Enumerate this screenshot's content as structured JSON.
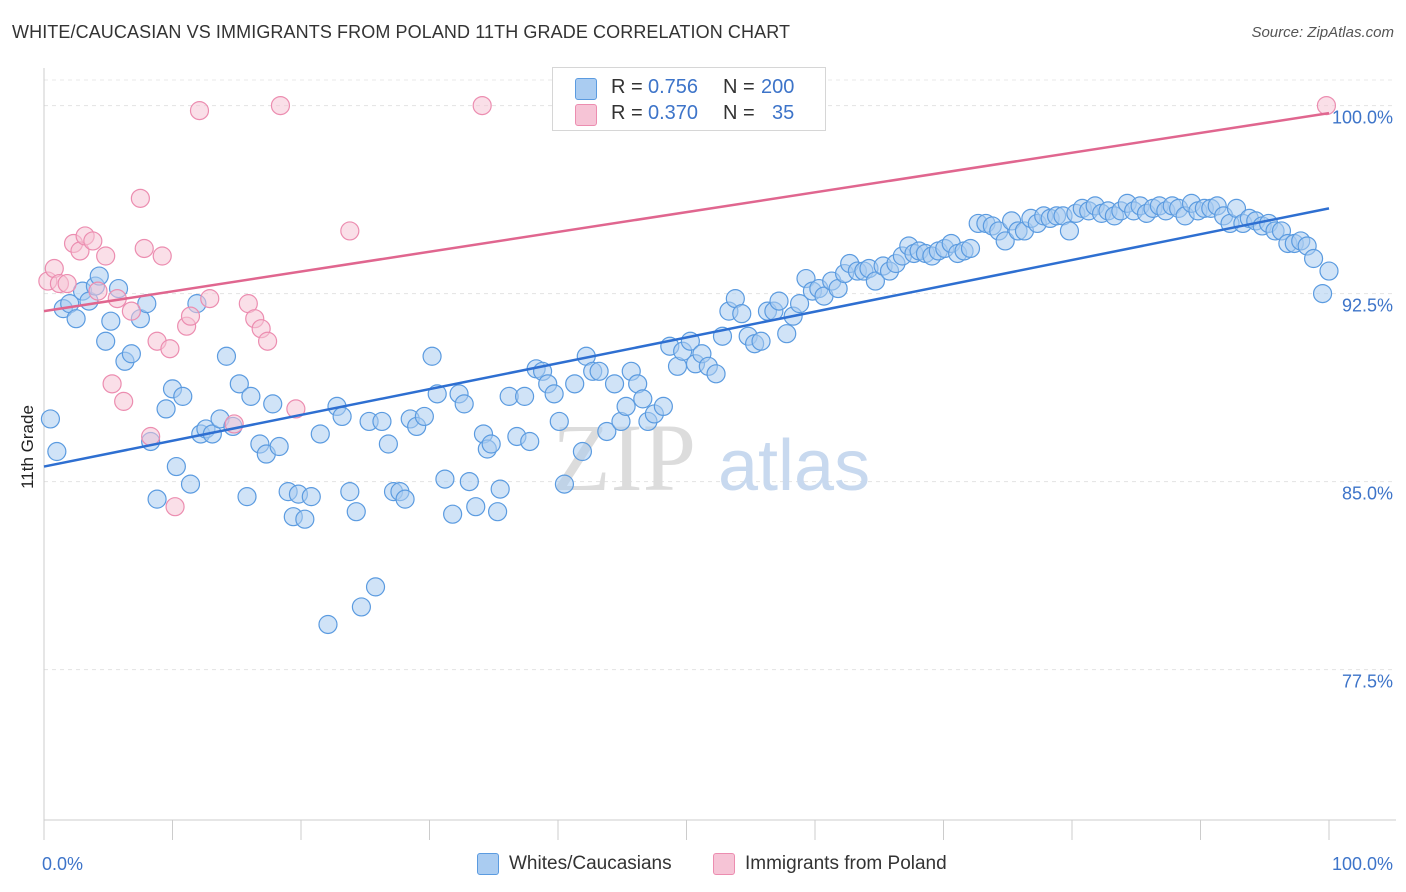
{
  "title": "WHITE/CAUCASIAN VS IMMIGRANTS FROM POLAND 11TH GRADE CORRELATION CHART",
  "source": "Source: ZipAtlas.com",
  "watermark": {
    "zip": "ZIP",
    "atlas": "atlas"
  },
  "stats": {
    "rows": [
      {
        "r_label": "R =",
        "r_value": "0.756",
        "n_label": "N =",
        "n_value": "200"
      },
      {
        "r_label": "R =",
        "r_value": "0.370",
        "n_label": "N =",
        "n_value": "35"
      }
    ]
  },
  "legend": {
    "items": [
      "Whites/Caucasians",
      "Immigrants from Poland"
    ]
  },
  "chart_data": {
    "type": "scatter",
    "title": "WHITE/CAUCASIAN VS IMMIGRANTS FROM POLAND 11TH GRADE CORRELATION CHART",
    "xlabel": "",
    "ylabel": "11th Grade",
    "xlim": [
      0,
      100
    ],
    "ylim": [
      71.5,
      101.5
    ],
    "x_ticks": [
      0,
      100
    ],
    "x_tick_labels": [
      "0.0%",
      "100.0%"
    ],
    "y_ticks": [
      77.5,
      85.0,
      92.5,
      100.0
    ],
    "y_tick_labels": [
      "77.5%",
      "85.0%",
      "92.5%",
      "100.0%"
    ],
    "grid": true,
    "legend_position": "bottom",
    "series": [
      {
        "name": "Whites/Caucasians",
        "color": "#5b9be0",
        "fill": "#aaccf1",
        "r": 0.756,
        "n": 200,
        "trend": {
          "x": [
            0,
            100
          ],
          "y": [
            85.6,
            95.9
          ],
          "color": "#2e6fd1"
        },
        "points": [
          [
            0.5,
            87.5
          ],
          [
            1,
            86.2
          ],
          [
            1.5,
            91.9
          ],
          [
            2,
            92.1
          ],
          [
            2.5,
            91.5
          ],
          [
            3,
            92.6
          ],
          [
            3.5,
            92.2
          ],
          [
            4,
            92.8
          ],
          [
            4.3,
            93.2
          ],
          [
            4.8,
            90.6
          ],
          [
            5.2,
            91.4
          ],
          [
            5.8,
            92.7
          ],
          [
            6.3,
            89.8
          ],
          [
            6.8,
            90.1
          ],
          [
            7.5,
            91.5
          ],
          [
            8,
            92.1
          ],
          [
            8.3,
            86.6
          ],
          [
            8.8,
            84.3
          ],
          [
            9.5,
            87.9
          ],
          [
            10,
            88.7
          ],
          [
            10.3,
            85.6
          ],
          [
            10.8,
            88.4
          ],
          [
            11.4,
            84.9
          ],
          [
            11.9,
            92.1
          ],
          [
            12.2,
            86.9
          ],
          [
            12.6,
            87.1
          ],
          [
            13.1,
            86.9
          ],
          [
            13.7,
            87.5
          ],
          [
            14.2,
            90.0
          ],
          [
            14.7,
            87.2
          ],
          [
            15.2,
            88.9
          ],
          [
            15.8,
            84.4
          ],
          [
            16.1,
            88.4
          ],
          [
            16.8,
            86.5
          ],
          [
            17.3,
            86.1
          ],
          [
            17.8,
            88.1
          ],
          [
            18.3,
            86.4
          ],
          [
            19,
            84.6
          ],
          [
            19.4,
            83.6
          ],
          [
            19.8,
            84.5
          ],
          [
            20.3,
            83.5
          ],
          [
            20.8,
            84.4
          ],
          [
            21.5,
            86.9
          ],
          [
            22.1,
            79.3
          ],
          [
            22.8,
            88.0
          ],
          [
            23.2,
            87.6
          ],
          [
            23.8,
            84.6
          ],
          [
            24.3,
            83.8
          ],
          [
            24.7,
            80.0
          ],
          [
            25.3,
            87.4
          ],
          [
            25.8,
            80.8
          ],
          [
            26.3,
            87.4
          ],
          [
            26.8,
            86.5
          ],
          [
            27.2,
            84.6
          ],
          [
            27.7,
            84.6
          ],
          [
            28.1,
            84.3
          ],
          [
            28.5,
            87.5
          ],
          [
            29,
            87.2
          ],
          [
            29.6,
            87.6
          ],
          [
            30.2,
            90.0
          ],
          [
            30.6,
            88.5
          ],
          [
            31.2,
            85.1
          ],
          [
            31.8,
            83.7
          ],
          [
            32.3,
            88.5
          ],
          [
            32.7,
            88.1
          ],
          [
            33.1,
            85.0
          ],
          [
            33.6,
            84.0
          ],
          [
            34.2,
            86.9
          ],
          [
            34.5,
            86.3
          ],
          [
            34.8,
            86.5
          ],
          [
            35.5,
            84.7
          ],
          [
            35.3,
            83.8
          ],
          [
            36.2,
            88.4
          ],
          [
            36.8,
            86.8
          ],
          [
            37.4,
            88.4
          ],
          [
            37.8,
            86.6
          ],
          [
            38.3,
            89.5
          ],
          [
            38.8,
            89.4
          ],
          [
            39.2,
            88.9
          ],
          [
            39.7,
            88.5
          ],
          [
            40.1,
            87.4
          ],
          [
            40.5,
            84.9
          ],
          [
            41.3,
            88.9
          ],
          [
            41.9,
            86.2
          ],
          [
            42.2,
            90.0
          ],
          [
            42.7,
            89.4
          ],
          [
            43.2,
            89.4
          ],
          [
            43.8,
            87.0
          ],
          [
            44.4,
            88.9
          ],
          [
            44.9,
            87.4
          ],
          [
            45.3,
            88.0
          ],
          [
            45.7,
            89.4
          ],
          [
            46.2,
            88.9
          ],
          [
            46.6,
            88.3
          ],
          [
            47,
            87.4
          ],
          [
            47.5,
            87.7
          ],
          [
            48.2,
            88.0
          ],
          [
            48.7,
            90.4
          ],
          [
            49.3,
            89.6
          ],
          [
            49.7,
            90.2
          ],
          [
            50.3,
            90.6
          ],
          [
            50.7,
            89.7
          ],
          [
            51.2,
            90.1
          ],
          [
            51.7,
            89.6
          ],
          [
            52.3,
            89.3
          ],
          [
            52.8,
            90.8
          ],
          [
            53.3,
            91.8
          ],
          [
            53.8,
            92.3
          ],
          [
            54.3,
            91.7
          ],
          [
            54.8,
            90.8
          ],
          [
            55.3,
            90.5
          ],
          [
            55.8,
            90.6
          ],
          [
            56.3,
            91.8
          ],
          [
            56.8,
            91.8
          ],
          [
            57.2,
            92.2
          ],
          [
            57.8,
            90.9
          ],
          [
            58.3,
            91.6
          ],
          [
            58.8,
            92.1
          ],
          [
            59.3,
            93.1
          ],
          [
            59.8,
            92.6
          ],
          [
            60.3,
            92.7
          ],
          [
            60.7,
            92.4
          ],
          [
            61.3,
            93.0
          ],
          [
            61.8,
            92.7
          ],
          [
            62.3,
            93.3
          ],
          [
            62.7,
            93.7
          ],
          [
            63.3,
            93.4
          ],
          [
            63.8,
            93.4
          ],
          [
            64.2,
            93.5
          ],
          [
            64.7,
            93.0
          ],
          [
            65.3,
            93.6
          ],
          [
            65.8,
            93.4
          ],
          [
            66.3,
            93.7
          ],
          [
            66.8,
            94.0
          ],
          [
            67.3,
            94.4
          ],
          [
            67.7,
            94.1
          ],
          [
            68.1,
            94.2
          ],
          [
            68.6,
            94.1
          ],
          [
            69.1,
            94.0
          ],
          [
            69.6,
            94.2
          ],
          [
            70.1,
            94.3
          ],
          [
            70.6,
            94.5
          ],
          [
            71.1,
            94.1
          ],
          [
            71.6,
            94.2
          ],
          [
            72.1,
            94.3
          ],
          [
            72.7,
            95.3
          ],
          [
            73.3,
            95.3
          ],
          [
            73.8,
            95.2
          ],
          [
            74.3,
            95.0
          ],
          [
            74.8,
            94.6
          ],
          [
            75.3,
            95.4
          ],
          [
            75.8,
            95.0
          ],
          [
            76.3,
            95.0
          ],
          [
            76.8,
            95.5
          ],
          [
            77.3,
            95.3
          ],
          [
            77.8,
            95.6
          ],
          [
            78.3,
            95.5
          ],
          [
            78.8,
            95.6
          ],
          [
            79.3,
            95.6
          ],
          [
            79.8,
            95.0
          ],
          [
            80.3,
            95.7
          ],
          [
            80.8,
            95.9
          ],
          [
            81.3,
            95.8
          ],
          [
            81.8,
            96.0
          ],
          [
            82.3,
            95.7
          ],
          [
            82.8,
            95.8
          ],
          [
            83.3,
            95.6
          ],
          [
            83.8,
            95.8
          ],
          [
            84.3,
            96.1
          ],
          [
            84.8,
            95.8
          ],
          [
            85.3,
            96.0
          ],
          [
            85.8,
            95.7
          ],
          [
            86.3,
            95.9
          ],
          [
            86.8,
            96.0
          ],
          [
            87.3,
            95.8
          ],
          [
            87.8,
            96.0
          ],
          [
            88.3,
            95.9
          ],
          [
            88.8,
            95.6
          ],
          [
            89.3,
            96.1
          ],
          [
            89.8,
            95.8
          ],
          [
            90.3,
            95.9
          ],
          [
            90.8,
            95.9
          ],
          [
            91.3,
            96.0
          ],
          [
            91.8,
            95.6
          ],
          [
            92.3,
            95.3
          ],
          [
            92.8,
            95.9
          ],
          [
            93.3,
            95.3
          ],
          [
            93.8,
            95.5
          ],
          [
            94.3,
            95.4
          ],
          [
            94.8,
            95.2
          ],
          [
            95.3,
            95.3
          ],
          [
            95.8,
            95.0
          ],
          [
            96.3,
            95.0
          ],
          [
            96.8,
            94.5
          ],
          [
            97.3,
            94.5
          ],
          [
            97.8,
            94.6
          ],
          [
            98.3,
            94.4
          ],
          [
            98.8,
            93.9
          ],
          [
            99.5,
            92.5
          ],
          [
            100,
            93.4
          ]
        ]
      },
      {
        "name": "Immigrants from Poland",
        "color": "#ec8db0",
        "fill": "#f6c4d6",
        "r": 0.37,
        "n": 35,
        "trend": {
          "x": [
            0,
            100
          ],
          "y": [
            91.8,
            99.7
          ],
          "color": "#e0668f"
        },
        "points": [
          [
            0.3,
            93.0
          ],
          [
            0.8,
            93.5
          ],
          [
            1.2,
            92.9
          ],
          [
            1.8,
            92.9
          ],
          [
            2.3,
            94.5
          ],
          [
            2.8,
            94.2
          ],
          [
            3.2,
            94.8
          ],
          [
            3.8,
            94.6
          ],
          [
            4.2,
            92.6
          ],
          [
            4.8,
            94.0
          ],
          [
            5.3,
            88.9
          ],
          [
            5.7,
            92.3
          ],
          [
            6.2,
            88.2
          ],
          [
            6.8,
            91.8
          ],
          [
            7.5,
            96.3
          ],
          [
            7.8,
            94.3
          ],
          [
            8.3,
            86.8
          ],
          [
            8.8,
            90.6
          ],
          [
            9.2,
            94.0
          ],
          [
            9.8,
            90.3
          ],
          [
            10.2,
            84.0
          ],
          [
            11.1,
            91.2
          ],
          [
            11.4,
            91.6
          ],
          [
            12.1,
            99.8
          ],
          [
            12.9,
            92.3
          ],
          [
            14.8,
            87.3
          ],
          [
            15.9,
            92.1
          ],
          [
            16.4,
            91.5
          ],
          [
            16.9,
            91.1
          ],
          [
            17.4,
            90.6
          ],
          [
            18.4,
            100.0
          ],
          [
            19.6,
            87.9
          ],
          [
            23.8,
            95.0
          ],
          [
            34.1,
            100.0
          ],
          [
            99.8,
            100.0
          ]
        ]
      }
    ]
  }
}
